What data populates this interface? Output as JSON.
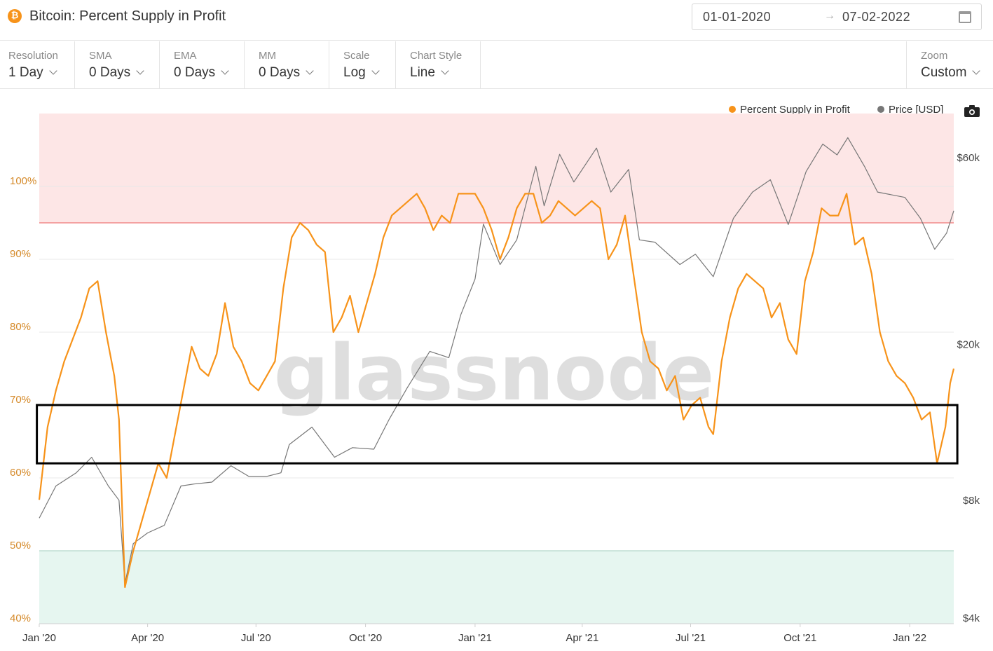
{
  "header": {
    "title": "Bitcoin: Percent Supply in Profit",
    "coin_symbol": "₿",
    "date_start": "01-01-2020",
    "date_arrow": "→",
    "date_end": "07-02-2022"
  },
  "controls": [
    {
      "label": "Resolution",
      "value": "1 Day"
    },
    {
      "label": "SMA",
      "value": "0 Days"
    },
    {
      "label": "EMA",
      "value": "0 Days"
    },
    {
      "label": "MM",
      "value": "0 Days"
    },
    {
      "label": "Scale",
      "value": "Log"
    },
    {
      "label": "Chart Style",
      "value": "Line"
    }
  ],
  "zoom": {
    "label": "Zoom",
    "value": "Custom"
  },
  "legend": [
    {
      "name": "Percent Supply in Profit",
      "color": "#f7931a"
    },
    {
      "name": "Price [USD]",
      "color": "#777777"
    }
  ],
  "watermark": "glassnode",
  "chart_data": {
    "type": "line",
    "x_axis": {
      "range": [
        "2020-01-01",
        "2022-02-07"
      ],
      "ticks": [
        {
          "date": "2020-01-01",
          "label": "Jan '20"
        },
        {
          "date": "2020-04-01",
          "label": "Apr '20"
        },
        {
          "date": "2020-07-01",
          "label": "Jul '20"
        },
        {
          "date": "2020-10-01",
          "label": "Oct '20"
        },
        {
          "date": "2021-01-01",
          "label": "Jan '21"
        },
        {
          "date": "2021-04-01",
          "label": "Apr '21"
        },
        {
          "date": "2021-07-01",
          "label": "Jul '21"
        },
        {
          "date": "2021-10-01",
          "label": "Oct '21"
        },
        {
          "date": "2022-01-01",
          "label": "Jan '22"
        }
      ]
    },
    "y_left": {
      "range": [
        40,
        110
      ],
      "ticks": [
        {
          "value": 40,
          "label": "40%"
        },
        {
          "value": 50,
          "label": "50%"
        },
        {
          "value": 60,
          "label": "60%"
        },
        {
          "value": 70,
          "label": "70%"
        },
        {
          "value": 80,
          "label": "80%"
        },
        {
          "value": 90,
          "label": "90%"
        },
        {
          "value": 100,
          "label": "100%"
        }
      ]
    },
    "y_right": {
      "scale": "log",
      "ticks": [
        {
          "value": 4000,
          "label": "$4k"
        },
        {
          "value": 8000,
          "label": "$8k"
        },
        {
          "value": 20000,
          "label": "$20k"
        },
        {
          "value": 60000,
          "label": "$60k"
        }
      ]
    },
    "bands": [
      {
        "from": 95,
        "to": 110,
        "color": "#fde6e6",
        "line": 95,
        "line_color": "#f28a8a"
      },
      {
        "from": 40,
        "to": 50,
        "color": "#e6f6f0",
        "line": 50,
        "line_color": "#6cc9a5"
      }
    ],
    "highlight_box": {
      "x_from": "2019-12-30",
      "x_to": "2022-02-10",
      "y_from": 62,
      "y_to": 70,
      "color": "#000000"
    },
    "series": [
      {
        "name": "Percent Supply in Profit",
        "color": "#f7931a",
        "axis": "left",
        "points": [
          [
            "2020-01-01",
            57
          ],
          [
            "2020-01-08",
            67
          ],
          [
            "2020-01-15",
            72
          ],
          [
            "2020-01-22",
            76
          ],
          [
            "2020-01-29",
            79
          ],
          [
            "2020-02-05",
            82
          ],
          [
            "2020-02-12",
            86
          ],
          [
            "2020-02-19",
            87
          ],
          [
            "2020-02-26",
            80
          ],
          [
            "2020-03-04",
            74
          ],
          [
            "2020-03-08",
            68
          ],
          [
            "2020-03-13",
            45
          ],
          [
            "2020-03-20",
            50
          ],
          [
            "2020-03-27",
            54
          ],
          [
            "2020-04-03",
            58
          ],
          [
            "2020-04-10",
            62
          ],
          [
            "2020-04-17",
            60
          ],
          [
            "2020-04-24",
            66
          ],
          [
            "2020-05-01",
            72
          ],
          [
            "2020-05-08",
            78
          ],
          [
            "2020-05-15",
            75
          ],
          [
            "2020-05-22",
            74
          ],
          [
            "2020-05-29",
            77
          ],
          [
            "2020-06-05",
            84
          ],
          [
            "2020-06-12",
            78
          ],
          [
            "2020-06-19",
            76
          ],
          [
            "2020-06-26",
            73
          ],
          [
            "2020-07-03",
            72
          ],
          [
            "2020-07-10",
            74
          ],
          [
            "2020-07-17",
            76
          ],
          [
            "2020-07-24",
            86
          ],
          [
            "2020-07-31",
            93
          ],
          [
            "2020-08-07",
            95
          ],
          [
            "2020-08-14",
            94
          ],
          [
            "2020-08-21",
            92
          ],
          [
            "2020-08-28",
            91
          ],
          [
            "2020-09-04",
            80
          ],
          [
            "2020-09-11",
            82
          ],
          [
            "2020-09-18",
            85
          ],
          [
            "2020-09-25",
            80
          ],
          [
            "2020-10-02",
            84
          ],
          [
            "2020-10-09",
            88
          ],
          [
            "2020-10-16",
            93
          ],
          [
            "2020-10-23",
            96
          ],
          [
            "2020-10-30",
            97
          ],
          [
            "2020-11-06",
            98
          ],
          [
            "2020-11-13",
            99
          ],
          [
            "2020-11-20",
            97
          ],
          [
            "2020-11-27",
            94
          ],
          [
            "2020-12-04",
            96
          ],
          [
            "2020-12-11",
            95
          ],
          [
            "2020-12-18",
            99
          ],
          [
            "2020-12-25",
            99
          ],
          [
            "2021-01-01",
            99
          ],
          [
            "2021-01-08",
            97
          ],
          [
            "2021-01-15",
            94
          ],
          [
            "2021-01-22",
            90
          ],
          [
            "2021-01-29",
            93
          ],
          [
            "2021-02-05",
            97
          ],
          [
            "2021-02-12",
            99
          ],
          [
            "2021-02-19",
            99
          ],
          [
            "2021-02-26",
            95
          ],
          [
            "2021-03-05",
            96
          ],
          [
            "2021-03-12",
            98
          ],
          [
            "2021-03-19",
            97
          ],
          [
            "2021-03-26",
            96
          ],
          [
            "2021-04-02",
            97
          ],
          [
            "2021-04-09",
            98
          ],
          [
            "2021-04-16",
            97
          ],
          [
            "2021-04-23",
            90
          ],
          [
            "2021-04-30",
            92
          ],
          [
            "2021-05-07",
            96
          ],
          [
            "2021-05-14",
            88
          ],
          [
            "2021-05-21",
            80
          ],
          [
            "2021-05-28",
            76
          ],
          [
            "2021-06-04",
            75
          ],
          [
            "2021-06-11",
            72
          ],
          [
            "2021-06-18",
            74
          ],
          [
            "2021-06-25",
            68
          ],
          [
            "2021-07-02",
            70
          ],
          [
            "2021-07-09",
            71
          ],
          [
            "2021-07-16",
            67
          ],
          [
            "2021-07-20",
            66
          ],
          [
            "2021-07-27",
            76
          ],
          [
            "2021-08-03",
            82
          ],
          [
            "2021-08-10",
            86
          ],
          [
            "2021-08-17",
            88
          ],
          [
            "2021-08-24",
            87
          ],
          [
            "2021-08-31",
            86
          ],
          [
            "2021-09-07",
            82
          ],
          [
            "2021-09-14",
            84
          ],
          [
            "2021-09-21",
            79
          ],
          [
            "2021-09-28",
            77
          ],
          [
            "2021-10-05",
            87
          ],
          [
            "2021-10-12",
            91
          ],
          [
            "2021-10-19",
            97
          ],
          [
            "2021-10-26",
            96
          ],
          [
            "2021-11-02",
            96
          ],
          [
            "2021-11-09",
            99
          ],
          [
            "2021-11-16",
            92
          ],
          [
            "2021-11-23",
            93
          ],
          [
            "2021-11-30",
            88
          ],
          [
            "2021-12-07",
            80
          ],
          [
            "2021-12-14",
            76
          ],
          [
            "2021-12-21",
            74
          ],
          [
            "2021-12-28",
            73
          ],
          [
            "2022-01-04",
            71
          ],
          [
            "2022-01-11",
            68
          ],
          [
            "2022-01-18",
            69
          ],
          [
            "2022-01-24",
            62
          ],
          [
            "2022-01-31",
            67
          ],
          [
            "2022-02-04",
            73
          ],
          [
            "2022-02-07",
            75
          ]
        ]
      },
      {
        "name": "Price [USD]",
        "color": "#777777",
        "axis": "right",
        "points": [
          [
            "2020-01-01",
            7200
          ],
          [
            "2020-01-15",
            8700
          ],
          [
            "2020-02-01",
            9400
          ],
          [
            "2020-02-14",
            10300
          ],
          [
            "2020-02-28",
            8700
          ],
          [
            "2020-03-08",
            8000
          ],
          [
            "2020-03-13",
            4900
          ],
          [
            "2020-03-20",
            6200
          ],
          [
            "2020-04-01",
            6600
          ],
          [
            "2020-04-15",
            6900
          ],
          [
            "2020-04-29",
            8700
          ],
          [
            "2020-05-10",
            8800
          ],
          [
            "2020-05-25",
            8900
          ],
          [
            "2020-06-10",
            9800
          ],
          [
            "2020-06-25",
            9200
          ],
          [
            "2020-07-10",
            9200
          ],
          [
            "2020-07-22",
            9400
          ],
          [
            "2020-07-29",
            11100
          ],
          [
            "2020-08-17",
            12300
          ],
          [
            "2020-09-05",
            10300
          ],
          [
            "2020-09-20",
            10900
          ],
          [
            "2020-10-08",
            10800
          ],
          [
            "2020-10-21",
            12900
          ],
          [
            "2020-11-05",
            15500
          ],
          [
            "2020-11-24",
            19200
          ],
          [
            "2020-12-10",
            18500
          ],
          [
            "2020-12-20",
            23800
          ],
          [
            "2021-01-01",
            29400
          ],
          [
            "2021-01-08",
            40600
          ],
          [
            "2021-01-22",
            32000
          ],
          [
            "2021-02-05",
            37000
          ],
          [
            "2021-02-21",
            57000
          ],
          [
            "2021-02-28",
            45200
          ],
          [
            "2021-03-13",
            61200
          ],
          [
            "2021-03-25",
            52000
          ],
          [
            "2021-04-13",
            63500
          ],
          [
            "2021-04-25",
            49000
          ],
          [
            "2021-05-10",
            56000
          ],
          [
            "2021-05-19",
            37000
          ],
          [
            "2021-06-01",
            36500
          ],
          [
            "2021-06-22",
            32000
          ],
          [
            "2021-07-05",
            34000
          ],
          [
            "2021-07-20",
            29800
          ],
          [
            "2021-08-06",
            42000
          ],
          [
            "2021-08-22",
            49000
          ],
          [
            "2021-09-06",
            52700
          ],
          [
            "2021-09-21",
            40500
          ],
          [
            "2021-10-06",
            55300
          ],
          [
            "2021-10-20",
            65000
          ],
          [
            "2021-11-01",
            61000
          ],
          [
            "2021-11-10",
            67500
          ],
          [
            "2021-11-24",
            57000
          ],
          [
            "2021-12-05",
            49000
          ],
          [
            "2021-12-28",
            47500
          ],
          [
            "2022-01-10",
            42000
          ],
          [
            "2022-01-22",
            35000
          ],
          [
            "2022-02-01",
            38500
          ],
          [
            "2022-02-07",
            43900
          ]
        ]
      }
    ]
  }
}
